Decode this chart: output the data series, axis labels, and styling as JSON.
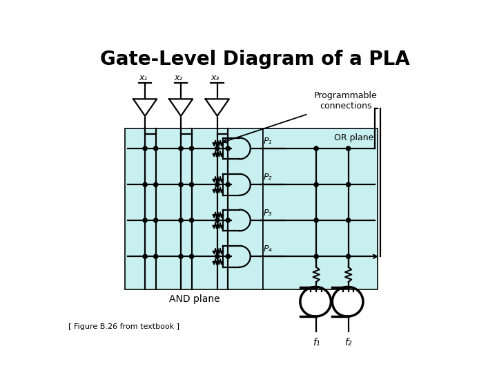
{
  "title": "Gate-Level Diagram of a PLA",
  "title_fontsize": 20,
  "title_fontweight": "bold",
  "bg_color": "#ffffff",
  "plane_bg": "#c8f0f0",
  "line_color": "#000000",
  "line_width": 1.6,
  "foot_note": "[ Figure B.26 from textbook ]",
  "input_labels": [
    "x₁",
    "x₂",
    "x₃"
  ],
  "product_labels": [
    "P₁",
    "P₂",
    "P₃",
    "P₄"
  ],
  "output_labels": [
    "f₁",
    "f₂"
  ],
  "fig_w": 7.2,
  "fig_h": 5.4,
  "fig_dpi": 100
}
